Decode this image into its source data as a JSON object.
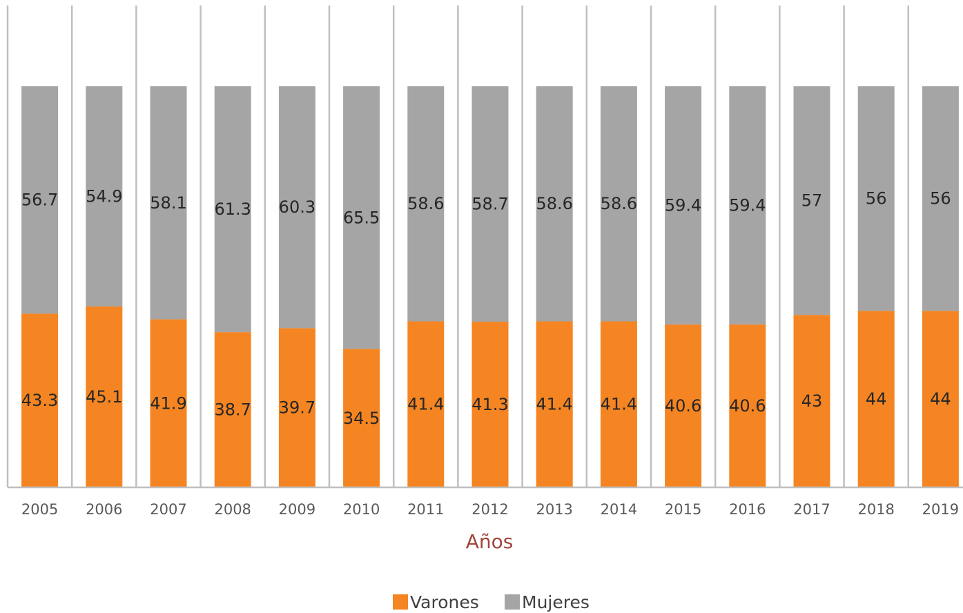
{
  "chart_data": {
    "type": "bar",
    "stacked": true,
    "categories": [
      "2005",
      "2006",
      "2007",
      "2008",
      "2009",
      "2010",
      "2011",
      "2012",
      "2013",
      "2014",
      "2015",
      "2016",
      "2017",
      "2018",
      "2019"
    ],
    "series": [
      {
        "name": "Varones",
        "color": "#f48522",
        "values": [
          43.3,
          45.1,
          41.9,
          38.7,
          39.7,
          34.5,
          41.4,
          41.3,
          41.4,
          41.4,
          40.6,
          40.6,
          43,
          44,
          44
        ],
        "labels": [
          "43.3",
          "45.1",
          "41.9",
          "38.7",
          "39.7",
          "34.5",
          "41.4",
          "41.3",
          "41.4",
          "41.4",
          "40.6",
          "40.6",
          "43",
          "44",
          "44"
        ]
      },
      {
        "name": "Mujeres",
        "color": "#a5a5a5",
        "values": [
          56.7,
          54.9,
          58.1,
          61.3,
          60.3,
          65.5,
          58.6,
          58.7,
          58.6,
          58.6,
          59.4,
          59.4,
          57,
          56,
          56
        ],
        "labels": [
          "56.7",
          "54.9",
          "58.1",
          "61.3",
          "60.3",
          "65.5",
          "58.6",
          "58.7",
          "58.6",
          "58.6",
          "59.4",
          "59.4",
          "57",
          "56",
          "56"
        ]
      }
    ],
    "xlabel": "Años",
    "xlabel_color": "#a0463c",
    "ylim": [
      0,
      120
    ],
    "grid": "vertical",
    "gridline_color": "#bfbfbf",
    "legend_position": "bottom",
    "data_labels": true
  }
}
